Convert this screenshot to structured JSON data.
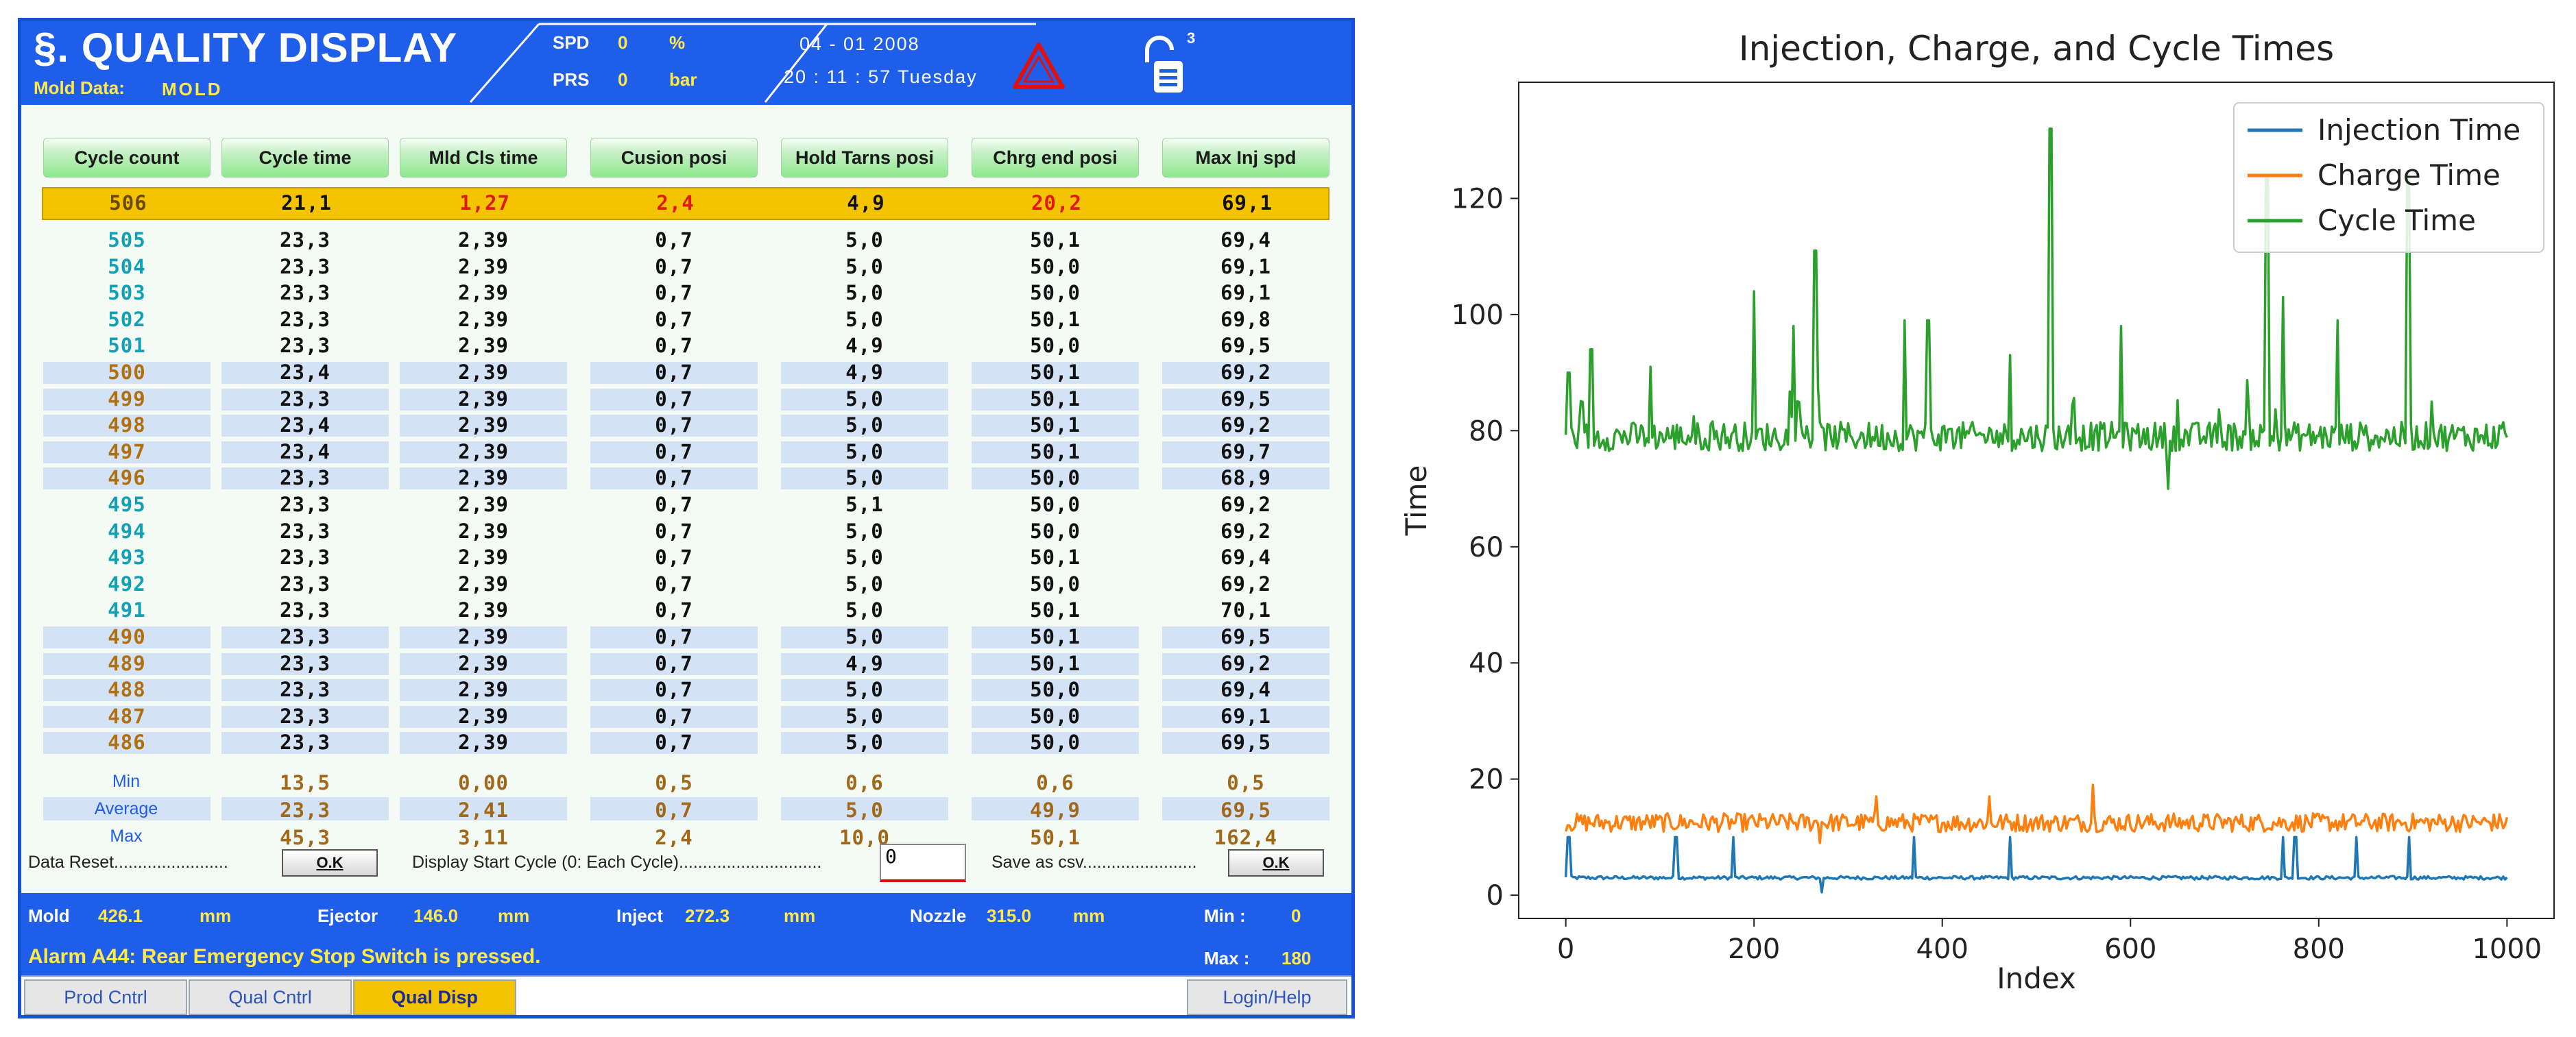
{
  "header": {
    "title": "§. QUALITY DISPLAY",
    "mold_label": "Mold Data:",
    "mold_value": "MOLD",
    "spd_label": "SPD",
    "spd_value": "0",
    "spd_unit": "%",
    "prs_label": "PRS",
    "prs_value": "0",
    "prs_unit": "bar",
    "date": "04 - 01  2008",
    "time": "20 : 11 : 57  Tuesday",
    "lock_level": "3",
    "warning_color": "#e01010"
  },
  "table": {
    "columns": [
      "Cycle count",
      "Cycle time",
      "Mld Cls time",
      "Cusion posi",
      "Hold Tarns posi",
      "Chrg end posi",
      "Max Inj spd"
    ],
    "current": [
      "506",
      "21,1",
      "1,27",
      "2,4",
      "4,9",
      "20,2",
      "69,1"
    ],
    "rows": [
      [
        "505",
        "23,3",
        "2,39",
        "0,7",
        "5,0",
        "50,1",
        "69,4"
      ],
      [
        "504",
        "23,3",
        "2,39",
        "0,7",
        "5,0",
        "50,0",
        "69,1"
      ],
      [
        "503",
        "23,3",
        "2,39",
        "0,7",
        "5,0",
        "50,0",
        "69,1"
      ],
      [
        "502",
        "23,3",
        "2,39",
        "0,7",
        "5,0",
        "50,1",
        "69,8"
      ],
      [
        "501",
        "23,3",
        "2,39",
        "0,7",
        "4,9",
        "50,0",
        "69,5"
      ],
      [
        "500",
        "23,4",
        "2,39",
        "0,7",
        "4,9",
        "50,1",
        "69,2"
      ],
      [
        "499",
        "23,3",
        "2,39",
        "0,7",
        "5,0",
        "50,1",
        "69,5"
      ],
      [
        "498",
        "23,4",
        "2,39",
        "0,7",
        "5,0",
        "50,1",
        "69,2"
      ],
      [
        "497",
        "23,4",
        "2,39",
        "0,7",
        "5,0",
        "50,1",
        "69,7"
      ],
      [
        "496",
        "23,3",
        "2,39",
        "0,7",
        "5,0",
        "50,0",
        "68,9"
      ],
      [
        "495",
        "23,3",
        "2,39",
        "0,7",
        "5,1",
        "50,0",
        "69,2"
      ],
      [
        "494",
        "23,3",
        "2,39",
        "0,7",
        "5,0",
        "50,0",
        "69,2"
      ],
      [
        "493",
        "23,3",
        "2,39",
        "0,7",
        "5,0",
        "50,1",
        "69,4"
      ],
      [
        "492",
        "23,3",
        "2,39",
        "0,7",
        "5,0",
        "50,0",
        "69,2"
      ],
      [
        "491",
        "23,3",
        "2,39",
        "0,7",
        "5,0",
        "50,1",
        "70,1"
      ],
      [
        "490",
        "23,3",
        "2,39",
        "0,7",
        "5,0",
        "50,1",
        "69,5"
      ],
      [
        "489",
        "23,3",
        "2,39",
        "0,7",
        "4,9",
        "50,1",
        "69,2"
      ],
      [
        "488",
        "23,3",
        "2,39",
        "0,7",
        "5,0",
        "50,0",
        "69,4"
      ],
      [
        "487",
        "23,3",
        "2,39",
        "0,7",
        "5,0",
        "50,0",
        "69,1"
      ],
      [
        "486",
        "23,3",
        "2,39",
        "0,7",
        "5,0",
        "50,0",
        "69,5"
      ]
    ],
    "summary": [
      {
        "label": "Min",
        "values": [
          "13,5",
          "0,00",
          "0,5",
          "0,6",
          "0,6",
          "0,5"
        ]
      },
      {
        "label": "Average",
        "values": [
          "23,3",
          "2,41",
          "0,7",
          "5,0",
          "49,9",
          "69,5"
        ]
      },
      {
        "label": "Max",
        "values": [
          "45,3",
          "3,11",
          "2,4",
          "10,0",
          "50,1",
          "162,4"
        ]
      }
    ],
    "colors": {
      "cycle_cyan": "#12a0b4",
      "cycle_orange": "#b07010",
      "value_dark": "#111111",
      "summary_value": "#a06818",
      "current_red": "#e01818"
    }
  },
  "controls": {
    "data_reset_label": "Data Reset........................",
    "ok_label": "O.K",
    "display_start_label": "Display Start Cycle (0: Each Cycle)..............................",
    "display_start_value": "0",
    "save_csv_label": "Save as csv........................"
  },
  "status": {
    "mold_label": "Mold",
    "mold_value": "426.1",
    "mold_unit": "mm",
    "ejector_label": "Ejector",
    "ejector_value": "146.0",
    "ejector_unit": "mm",
    "inject_label": "Inject",
    "inject_value": "272.3",
    "inject_unit": "mm",
    "nozzle_label": "Nozzle",
    "nozzle_value": "315.0",
    "nozzle_unit": "mm",
    "min_label": "Min :",
    "min_value": "0",
    "max_label": "Max :",
    "max_value": "180",
    "alarm": "Alarm A44: Rear Emergency Stop Switch is pressed."
  },
  "nav": {
    "tabs": [
      {
        "label": "Prod Cntrl"
      },
      {
        "label": "Qual Cntrl"
      },
      {
        "label": "Qual Disp"
      }
    ],
    "login_help": "Login/Help"
  },
  "chart_data": {
    "type": "line",
    "title": "Injection, Charge, and Cycle Times",
    "xlabel": "Index",
    "ylabel": "Time",
    "xlim": [
      -50,
      1050
    ],
    "ylim": [
      -4,
      140
    ],
    "xticks": [
      0,
      200,
      400,
      600,
      800,
      1000
    ],
    "yticks": [
      0,
      20,
      40,
      60,
      80,
      100,
      120
    ],
    "legend_position": "top-right",
    "series": [
      {
        "name": "Injection Time",
        "color": "#1f77b4",
        "baseline": 3.0,
        "noise": 0.3,
        "spikes": [
          [
            3,
            10
          ],
          [
            117,
            10
          ],
          [
            178,
            10
          ],
          [
            370,
            10
          ],
          [
            472,
            10
          ],
          [
            762,
            10
          ],
          [
            775,
            10
          ],
          [
            840,
            10
          ],
          [
            896,
            10
          ]
        ],
        "dips": [
          [
            272,
            0.5
          ]
        ]
      },
      {
        "name": "Charge Time",
        "color": "#ff7f0e",
        "baseline": 12.5,
        "noise": 1.6,
        "spikes": [
          [
            560,
            19
          ],
          [
            450,
            17
          ],
          [
            330,
            17
          ]
        ],
        "dips": [
          [
            270,
            9
          ]
        ]
      },
      {
        "name": "Cycle Time",
        "color": "#2ca02c",
        "baseline": 79,
        "noise": 2.5,
        "spikes": [
          [
            3,
            90
          ],
          [
            27,
            94
          ],
          [
            90,
            91
          ],
          [
            200,
            104
          ],
          [
            242,
            98
          ],
          [
            265,
            111
          ],
          [
            360,
            99
          ],
          [
            385,
            99
          ],
          [
            472,
            93
          ],
          [
            515,
            132
          ],
          [
            590,
            98
          ],
          [
            745,
            124
          ],
          [
            762,
            103
          ],
          [
            820,
            99
          ],
          [
            895,
            124
          ],
          [
            920,
            85
          ]
        ],
        "dips": [
          [
            640,
            70
          ]
        ]
      }
    ]
  }
}
